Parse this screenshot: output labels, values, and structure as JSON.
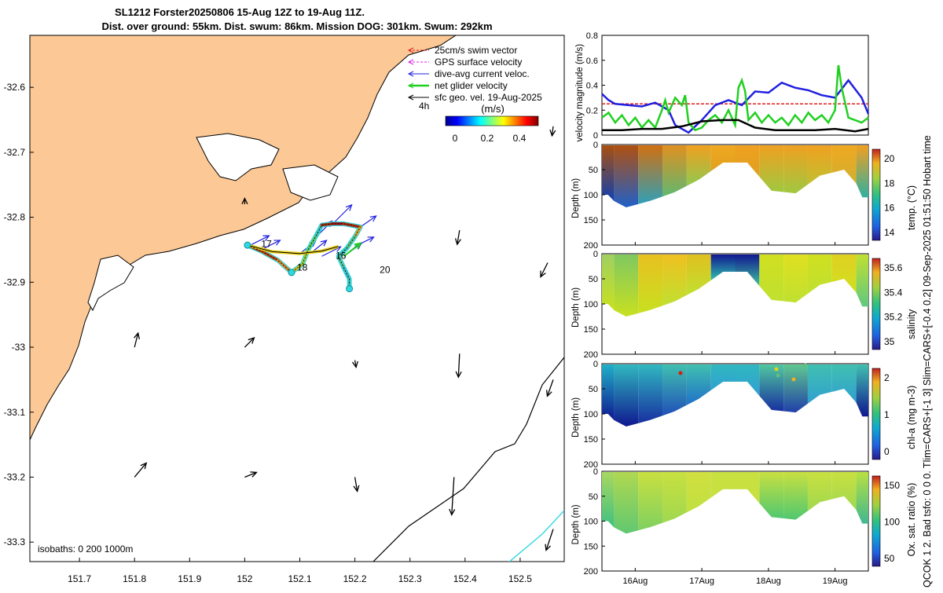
{
  "header": {
    "title_line1": "SL1212 Forster20250806 15-Aug 12Z to 19-Aug 11Z.",
    "title_line2": "Dist. over ground: 55km. Dist. swum: 86km. Mission DOG: 301km. Swum: 292km"
  },
  "side_label": "QCOK 1  2. Bad tsfo: 0  0  0. Tlim=CARS+[-1 3] Slim=CARS+[-0.4 0.2] 09-Sep-2025 01:51:50 Hobart time",
  "legend": {
    "items": [
      {
        "label": "25cm/s swim vector",
        "color": "#e02020"
      },
      {
        "label": "GPS surface velocity",
        "color": "#e020e0"
      },
      {
        "label": "dive-avg current veloc.",
        "color": "#2020e0"
      },
      {
        "label": "net glider velocity",
        "color": "#20d020"
      },
      {
        "label": "sfc geo. vel. 19-Aug-2025",
        "color": "#000000"
      }
    ]
  },
  "colorbar_map": {
    "title": "(m/s)",
    "ticks": [
      "0",
      "0.2",
      "0.4"
    ]
  },
  "map_annotations": {
    "isobaths": "isobaths: 0   200  1000m",
    "corner_label": "4h"
  },
  "chart_data": [
    {
      "type": "line",
      "name": "map",
      "xticks": [
        "151.7",
        "151.8",
        "151.9",
        "152",
        "152.1",
        "152.2",
        "152.3",
        "152.4",
        "152.5"
      ],
      "yticks": [
        "-32.6",
        "-32.7",
        "-32.8",
        "-32.9",
        "-33",
        "-33.1",
        "-33.2",
        "-33.3"
      ],
      "xlim": [
        151.61,
        152.58
      ],
      "ylim": [
        -33.33,
        -32.52
      ],
      "day_labels": [
        {
          "text": "17",
          "lon": 152.03,
          "lat": -32.846
        },
        {
          "text": "18",
          "lon": 152.095,
          "lat": -32.882
        },
        {
          "text": "16",
          "lon": 152.165,
          "lat": -32.864
        },
        {
          "text": "20",
          "lon": 152.245,
          "lat": -32.886
        }
      ],
      "track": [
        [
          152.005,
          -32.843
        ],
        [
          152.03,
          -32.852
        ],
        [
          152.06,
          -32.866
        ],
        [
          152.085,
          -32.885
        ],
        [
          152.105,
          -32.872
        ],
        [
          152.115,
          -32.85
        ],
        [
          152.13,
          -32.828
        ],
        [
          152.14,
          -32.812
        ],
        [
          152.16,
          -32.81
        ],
        [
          152.18,
          -32.81
        ],
        [
          152.21,
          -32.815
        ],
        [
          152.2,
          -32.83
        ],
        [
          152.185,
          -32.848
        ],
        [
          152.17,
          -32.86
        ],
        [
          152.18,
          -32.878
        ],
        [
          152.19,
          -32.895
        ],
        [
          152.19,
          -32.91
        ]
      ],
      "track_return": [
        [
          152.005,
          -32.843
        ],
        [
          152.05,
          -32.853
        ],
        [
          152.1,
          -32.856
        ],
        [
          152.14,
          -32.852
        ],
        [
          152.17,
          -32.845
        ]
      ]
    },
    {
      "type": "line",
      "name": "velocity magnitude",
      "ylabel": "velocity magnitude (m/s)",
      "ylim": [
        0,
        0.8
      ],
      "yticks": [
        "0",
        "0.2",
        "0.4",
        "0.6",
        "0.8"
      ],
      "xlim": [
        15.5,
        19.5
      ],
      "series": [
        {
          "name": "25cm/s swim vector",
          "color": "#e02020",
          "x": [
            15.5,
            19.5
          ],
          "values": [
            0.25,
            0.25
          ]
        },
        {
          "name": "dive-avg current veloc.",
          "color": "#2020e0",
          "x": [
            15.5,
            15.6,
            15.7,
            15.9,
            16.1,
            16.3,
            16.5,
            16.6,
            16.8,
            17.0,
            17.2,
            17.4,
            17.6,
            17.8,
            18.0,
            18.2,
            18.4,
            18.6,
            18.8,
            19.0,
            19.2,
            19.4,
            19.5
          ],
          "values": [
            0.33,
            0.28,
            0.25,
            0.24,
            0.23,
            0.26,
            0.2,
            0.08,
            0.02,
            0.12,
            0.24,
            0.28,
            0.24,
            0.35,
            0.34,
            0.42,
            0.38,
            0.36,
            0.32,
            0.3,
            0.44,
            0.3,
            0.17
          ]
        },
        {
          "name": "net glider velocity",
          "color": "#20d020",
          "x": [
            15.5,
            15.6,
            15.7,
            15.8,
            15.9,
            16.0,
            16.1,
            16.2,
            16.3,
            16.4,
            16.45,
            16.5,
            16.6,
            16.7,
            16.75,
            16.8,
            16.9,
            17.0,
            17.1,
            17.2,
            17.3,
            17.4,
            17.5,
            17.55,
            17.6,
            17.65,
            17.7,
            17.8,
            17.9,
            18.0,
            18.1,
            18.2,
            18.3,
            18.4,
            18.5,
            18.6,
            18.7,
            18.8,
            18.9,
            19.0,
            19.05,
            19.1,
            19.2,
            19.3,
            19.4,
            19.5
          ],
          "values": [
            0.14,
            0.18,
            0.1,
            0.16,
            0.08,
            0.14,
            0.06,
            0.12,
            0.06,
            0.2,
            0.28,
            0.18,
            0.3,
            0.24,
            0.32,
            0.1,
            0.04,
            0.06,
            0.12,
            0.16,
            0.1,
            0.2,
            0.08,
            0.38,
            0.44,
            0.35,
            0.12,
            0.18,
            0.1,
            0.16,
            0.1,
            0.14,
            0.08,
            0.16,
            0.1,
            0.18,
            0.12,
            0.16,
            0.1,
            0.2,
            0.56,
            0.38,
            0.14,
            0.12,
            0.1,
            0.14
          ]
        },
        {
          "name": "sfc geo. vel.",
          "color": "#000000",
          "x": [
            15.5,
            15.8,
            16.1,
            16.4,
            16.7,
            17.0,
            17.3,
            17.55,
            17.8,
            18.1,
            18.4,
            18.7,
            19.0,
            19.3,
            19.5
          ],
          "values": [
            0.04,
            0.04,
            0.05,
            0.05,
            0.07,
            0.11,
            0.12,
            0.12,
            0.06,
            0.04,
            0.04,
            0.04,
            0.05,
            0.03,
            0.05
          ]
        }
      ]
    },
    {
      "type": "heatmap",
      "name": "temperature",
      "ylabel": "Depth (m)",
      "cbar_label": "temp. (°C)",
      "yticks": [
        "0",
        "50",
        "100",
        "150",
        "200"
      ],
      "cbar_ticks": [
        "14",
        "16",
        "18",
        "20"
      ],
      "profile_depth": [
        100,
        125,
        112,
        95,
        70,
        36,
        36,
        92,
        97,
        62,
        50,
        105
      ],
      "columns": [
        {
          "top": "#a85010",
          "bottom": "#1040b0"
        },
        {
          "top": "#b05010",
          "bottom": "#2060c8"
        },
        {
          "top": "#d07010",
          "bottom": "#30a0b8"
        },
        {
          "top": "#e09020",
          "bottom": "#60b870"
        },
        {
          "top": "#f0a020",
          "bottom": "#90c850"
        },
        {
          "top": "#f0a820",
          "bottom": "#e0a020"
        },
        {
          "top": "#f0a020",
          "bottom": "#e0a020"
        },
        {
          "top": "#f0a020",
          "bottom": "#a0c840"
        },
        {
          "top": "#f0a020",
          "bottom": "#a0c840"
        },
        {
          "top": "#f0a020",
          "bottom": "#c0c030"
        },
        {
          "top": "#f0a820",
          "bottom": "#d0b030"
        },
        {
          "top": "#f0a020",
          "bottom": "#30b0a0"
        }
      ]
    },
    {
      "type": "heatmap",
      "name": "salinity",
      "ylabel": "Depth (m)",
      "cbar_label": "salinity",
      "yticks": [
        "0",
        "50",
        "100",
        "150",
        "200"
      ],
      "cbar_ticks": [
        "35",
        "35.2",
        "35.4",
        "35.6"
      ],
      "profile_depth": [
        100,
        125,
        112,
        95,
        70,
        36,
        36,
        92,
        97,
        62,
        50,
        105
      ],
      "columns": [
        {
          "top": "#a0d060",
          "bottom": "#c8e020"
        },
        {
          "top": "#80c860",
          "bottom": "#c8e020"
        },
        {
          "top": "#e8c020",
          "bottom": "#c8e020"
        },
        {
          "top": "#f0c020",
          "bottom": "#c0e030"
        },
        {
          "top": "#e0c020",
          "bottom": "#c0e030"
        },
        {
          "top": "#101890",
          "bottom": "#30c0b0"
        },
        {
          "top": "#101890",
          "bottom": "#40c0a0"
        },
        {
          "top": "#d0e020",
          "bottom": "#c0e030"
        },
        {
          "top": "#e0e020",
          "bottom": "#c0e030"
        },
        {
          "top": "#d0e020",
          "bottom": "#c0e030"
        },
        {
          "top": "#e0d020",
          "bottom": "#d0e020"
        },
        {
          "top": "#c0e030",
          "bottom": "#60c880"
        }
      ]
    },
    {
      "type": "heatmap",
      "name": "chlorophyll",
      "ylabel": "Depth (m)",
      "cbar_label": "chl-a (mg m-3)",
      "yticks": [
        "0",
        "50",
        "100",
        "150",
        "200"
      ],
      "cbar_ticks": [
        "0",
        "1",
        "2"
      ],
      "profile_depth": [
        100,
        125,
        112,
        95,
        70,
        36,
        36,
        92,
        97,
        62,
        50,
        105
      ],
      "columns": [
        {
          "top": "#20b0c8",
          "bottom": "#101890"
        },
        {
          "top": "#30b8c0",
          "bottom": "#101890"
        },
        {
          "top": "#30b8c0",
          "bottom": "#1830a0"
        },
        {
          "top": "#40c0b0",
          "bottom": "#2050b8"
        },
        {
          "top": "#40c0b0",
          "bottom": "#2070c8"
        },
        {
          "top": "#30b8c0",
          "bottom": "#30a0d0"
        },
        {
          "top": "#30b8c0",
          "bottom": "#30a0d0"
        },
        {
          "top": "#50c8a0",
          "bottom": "#1830a0"
        },
        {
          "top": "#60c890",
          "bottom": "#2040a8"
        },
        {
          "top": "#40c0b0",
          "bottom": "#30a0d0"
        },
        {
          "top": "#40c0b0",
          "bottom": "#30a0d0"
        },
        {
          "top": "#40c0b0",
          "bottom": "#101890"
        }
      ]
    },
    {
      "type": "heatmap",
      "name": "oxygen saturation",
      "ylabel": "Depth (m)",
      "cbar_label": "Ox. sat. ratio (%)",
      "xlabel_ticks": [
        "16Aug",
        "17Aug",
        "18Aug",
        "19Aug"
      ],
      "yticks": [
        "0",
        "50",
        "100",
        "150",
        "200"
      ],
      "cbar_ticks": [
        "50",
        "100",
        "150"
      ],
      "profile_depth": [
        100,
        125,
        112,
        95,
        70,
        36,
        36,
        92,
        97,
        62,
        50,
        105
      ],
      "columns": [
        {
          "top": "#a8d860",
          "bottom": "#40c080"
        },
        {
          "top": "#b0d850",
          "bottom": "#60c870"
        },
        {
          "top": "#c8e040",
          "bottom": "#80d060"
        },
        {
          "top": "#c8e040",
          "bottom": "#a0d850"
        },
        {
          "top": "#d0e040",
          "bottom": "#c0e040"
        },
        {
          "top": "#c8e040",
          "bottom": "#c8e040"
        },
        {
          "top": "#c8e040",
          "bottom": "#c8e040"
        },
        {
          "top": "#c8e040",
          "bottom": "#50c870"
        },
        {
          "top": "#c8e040",
          "bottom": "#50c870"
        },
        {
          "top": "#c8e040",
          "bottom": "#a0d850"
        },
        {
          "top": "#c8e040",
          "bottom": "#a0d850"
        },
        {
          "top": "#b8e040",
          "bottom": "#40b890"
        }
      ]
    }
  ]
}
